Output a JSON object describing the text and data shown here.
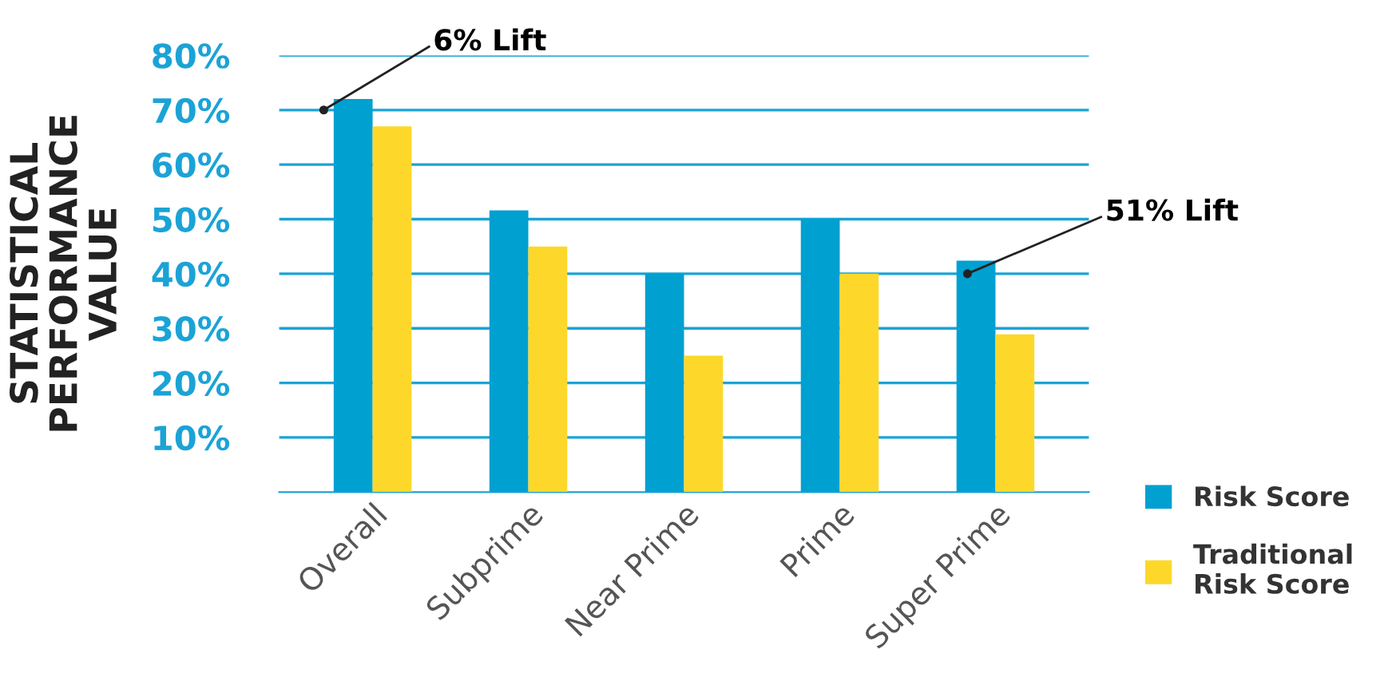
{
  "chart_data": {
    "type": "bar",
    "ylabel": "STATISTICAL\nPERFORMANCE\nVALUE",
    "categories": [
      "Overall",
      "Subprime",
      "Near Prime",
      "Prime",
      "Super Prime"
    ],
    "series": [
      {
        "name": "Risk Score",
        "color": "#00a0d1",
        "values": [
          72,
          51.6,
          40,
          50,
          42.4
        ]
      },
      {
        "name": "Traditional\nRisk Score",
        "color": "#fdd82a",
        "values": [
          67,
          45,
          25,
          40,
          28.9
        ]
      }
    ],
    "ylim": [
      0,
      80
    ],
    "yticks": [
      {
        "value": 10,
        "label": "10%"
      },
      {
        "value": 20,
        "label": "20%"
      },
      {
        "value": 30,
        "label": "30%"
      },
      {
        "value": 40,
        "label": "40%"
      },
      {
        "value": 50,
        "label": "50%"
      },
      {
        "value": 60,
        "label": "60%"
      },
      {
        "value": 70,
        "label": "70%"
      },
      {
        "value": 80,
        "label": "80%"
      }
    ],
    "grid": "y",
    "legend": "bottom right",
    "annotations": [
      "6% Lift",
      "51% Lift"
    ]
  }
}
